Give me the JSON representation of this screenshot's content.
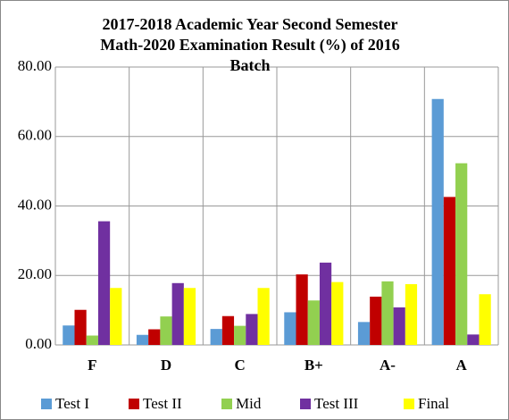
{
  "chart_data": {
    "type": "bar",
    "title": "2017-2018 Academic Year Second Semester Math-2020 Examination Result (%) of  2016 Batch",
    "categories": [
      "F",
      "D",
      "C",
      "B+",
      "A-",
      "A"
    ],
    "series": [
      {
        "name": "Test I",
        "color": "#5b9bd5",
        "values": [
          5.6,
          2.9,
          4.6,
          9.4,
          6.6,
          70.8
        ]
      },
      {
        "name": "Test II",
        "color": "#c00000",
        "values": [
          10.1,
          4.5,
          8.3,
          20.3,
          13.9,
          42.6
        ]
      },
      {
        "name": "Mid",
        "color": "#92d050",
        "values": [
          2.7,
          8.2,
          5.5,
          12.8,
          18.3,
          52.3
        ]
      },
      {
        "name": "Test III",
        "color": "#7030a0",
        "values": [
          35.6,
          17.8,
          8.9,
          23.7,
          10.8,
          3.0
        ]
      },
      {
        "name": "Final",
        "color": "#ffff00",
        "values": [
          16.4,
          16.4,
          16.4,
          18.1,
          17.5,
          14.6
        ]
      }
    ],
    "ylim": [
      0,
      80
    ],
    "yticks": [
      {
        "value": 0,
        "label": "0.00"
      },
      {
        "value": 20,
        "label": "20.00"
      },
      {
        "value": 40,
        "label": "40.00"
      },
      {
        "value": 60,
        "label": "60.00"
      },
      {
        "value": 80,
        "label": "80.00"
      }
    ],
    "grid": true,
    "legend": "bottom"
  }
}
